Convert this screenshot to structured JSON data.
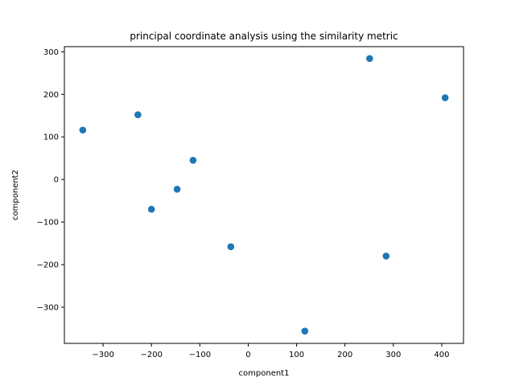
{
  "chart_data": {
    "type": "scatter",
    "title": "principal coordinate analysis using the similarity metric",
    "xlabel": "component1",
    "ylabel": "component2",
    "xlim": [
      -380,
      445
    ],
    "ylim": [
      -385,
      312
    ],
    "xticks": [
      -300,
      -200,
      -100,
      0,
      100,
      200,
      300,
      400
    ],
    "yticks": [
      -300,
      -200,
      -100,
      0,
      100,
      200,
      300
    ],
    "grid": false,
    "marker_color": "#1f77b4",
    "series": [
      {
        "points": [
          {
            "x": -342,
            "y": 116
          },
          {
            "x": -228,
            "y": 152
          },
          {
            "x": -200,
            "y": -70
          },
          {
            "x": -147,
            "y": -23
          },
          {
            "x": -114,
            "y": 45
          },
          {
            "x": -36,
            "y": -158
          },
          {
            "x": 117,
            "y": -356
          },
          {
            "x": 251,
            "y": 284
          },
          {
            "x": 285,
            "y": -180
          },
          {
            "x": 407,
            "y": 192
          }
        ]
      }
    ]
  }
}
